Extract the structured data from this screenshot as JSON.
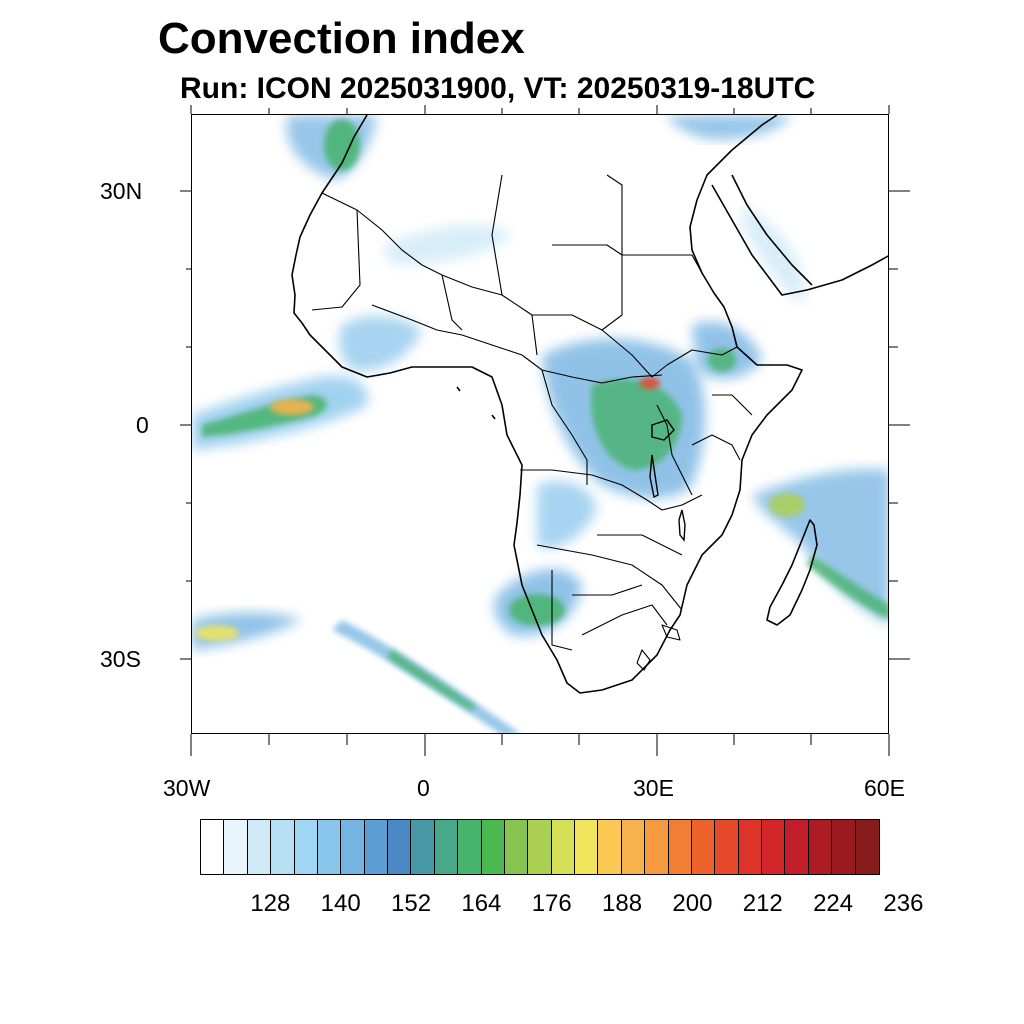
{
  "title": "Convection index",
  "subtitle": "Run: ICON 2025031900,  VT: 20250319-18UTC",
  "lat_labels": [
    "30N",
    "0",
    "30S"
  ],
  "lon_labels": [
    "30W",
    "0",
    "30E",
    "60E"
  ],
  "colorbar": {
    "labels": [
      "128",
      "140",
      "152",
      "164",
      "176",
      "188",
      "200",
      "212",
      "224",
      "236"
    ],
    "colors": [
      "#ffffff",
      "#e8f5fc",
      "#cfe9f7",
      "#b8e0f5",
      "#9fd6f4",
      "#8ac6ec",
      "#74b4e2",
      "#5c9ed4",
      "#4a89c5",
      "#4799a8",
      "#48a98a",
      "#47b36c",
      "#4cb950",
      "#86c452",
      "#acd052",
      "#d6df55",
      "#f1e55b",
      "#f9c953",
      "#f7b24e",
      "#f59a3f",
      "#f17f33",
      "#ec632c",
      "#e44a2a",
      "#dd3329",
      "#d22629",
      "#c21e2a",
      "#ad1c25",
      "#9b1a20",
      "#881b1b"
    ]
  }
}
